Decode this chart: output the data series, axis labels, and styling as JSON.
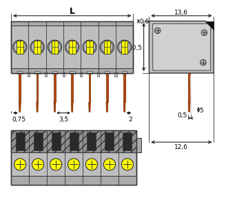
{
  "bg_color": "#ffffff",
  "gray_body": "#bebebe",
  "gray_mid": "#aaaaaa",
  "gray_dark": "#909090",
  "gray_outline": "#333333",
  "yellow_color": "#ffff00",
  "orange_pin": "#b84400",
  "num_pins": 7,
  "dim_L_label": "L",
  "dim_0_6": "0,6",
  "dim_13_6": "13,6",
  "dim_10_5": "10,5",
  "dim_0_75": "0,75",
  "dim_3_5": "3,5",
  "dim_2": "2",
  "dim_0_5": "0,5",
  "dim_5": "5",
  "dim_12_6": "12,6",
  "font_size_dim": 6.5,
  "font_size_L": 9
}
